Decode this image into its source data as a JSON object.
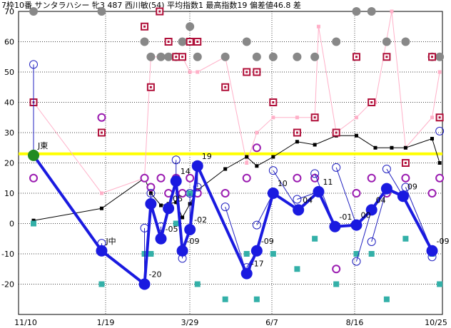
{
  "header": "7枠10番 サンタラハシー 牝3 487 西川敏(54) 平均指数1 最高指数19 偏差値46.8 差",
  "chart_data": {
    "type": "line",
    "ylim": [
      -30,
      70
    ],
    "y_ticks": [
      "70",
      "60",
      "50",
      "40",
      "30",
      "20",
      "10",
      "0",
      "-10",
      "-20"
    ],
    "x_tick_labels": [
      "11/10",
      "1/19",
      "3/29",
      "6/7",
      "8/16",
      "10/25"
    ],
    "reference_line": 23,
    "main_series": {
      "color": "#1a1ae0",
      "points": [
        {
          "x": 0,
          "y": 22.5,
          "label": "J東",
          "marker": "green"
        },
        {
          "x": 5.4,
          "y": -9,
          "label": "J中"
        },
        {
          "x": 8.8,
          "y": -20,
          "label": "-20"
        },
        {
          "x": 9.3,
          "y": 6.5,
          "label": ""
        },
        {
          "x": 10.1,
          "y": -5,
          "label": "-05"
        },
        {
          "x": 10.7,
          "y": 5,
          "label": "05"
        },
        {
          "x": 11.3,
          "y": 14,
          "label": "14"
        },
        {
          "x": 11.8,
          "y": -9,
          "label": "-09"
        },
        {
          "x": 12.4,
          "y": -2,
          "label": "-02"
        },
        {
          "x": 13.0,
          "y": 19,
          "label": "19"
        },
        {
          "x": 16.9,
          "y": -16.5,
          "label": "-17"
        },
        {
          "x": 17.7,
          "y": -9,
          "label": "-09"
        },
        {
          "x": 19.0,
          "y": 10,
          "label": "10"
        },
        {
          "x": 21.0,
          "y": 4.5,
          "label": "04"
        },
        {
          "x": 22.6,
          "y": 10.5,
          "label": "11"
        },
        {
          "x": 23.9,
          "y": -1,
          "label": "-01"
        },
        {
          "x": 25.6,
          "y": -0.5,
          "label": "00"
        },
        {
          "x": 26.8,
          "y": 4.5,
          "label": "04"
        },
        {
          "x": 28.0,
          "y": 11.5,
          "label": ""
        },
        {
          "x": 29.3,
          "y": 9,
          "label": "09"
        },
        {
          "x": 31.6,
          "y": -9,
          "label": "-09"
        }
      ]
    },
    "black_series": {
      "color": "#000000",
      "points": [
        [
          0,
          1
        ],
        [
          5.4,
          5
        ],
        [
          8.8,
          15
        ],
        [
          9.3,
          10
        ],
        [
          10.1,
          6
        ],
        [
          10.7,
          6.5
        ],
        [
          11.3,
          7
        ],
        [
          11.8,
          2
        ],
        [
          12.4,
          6.5
        ],
        [
          13.0,
          11
        ],
        [
          15.2,
          18
        ],
        [
          16.9,
          22
        ],
        [
          17.7,
          19
        ],
        [
          19.0,
          22
        ],
        [
          20.9,
          27
        ],
        [
          22.3,
          26
        ],
        [
          24.0,
          29
        ],
        [
          25.6,
          29
        ],
        [
          27.1,
          25
        ],
        [
          28.4,
          25
        ],
        [
          29.5,
          25
        ],
        [
          31.6,
          28
        ],
        [
          32.2,
          20
        ]
      ]
    },
    "pink_series": {
      "color": "#ffb0c8",
      "points": [
        [
          0,
          40
        ],
        [
          5.4,
          10
        ],
        [
          8.8,
          15
        ],
        [
          9.3,
          55
        ],
        [
          10.1,
          55
        ],
        [
          10.7,
          55
        ],
        [
          11.3,
          55
        ],
        [
          11.8,
          55
        ],
        [
          12.4,
          50
        ],
        [
          13.0,
          50
        ],
        [
          15.2,
          55
        ],
        [
          16.9,
          20
        ],
        [
          17.7,
          30
        ],
        [
          19.0,
          35
        ],
        [
          20.9,
          35
        ],
        [
          22.3,
          35
        ],
        [
          22.6,
          65
        ],
        [
          24.0,
          30
        ],
        [
          25.6,
          35
        ],
        [
          26.8,
          40
        ],
        [
          27.1,
          40
        ],
        [
          28.4,
          70
        ],
        [
          29.5,
          25
        ],
        [
          31.6,
          35
        ],
        [
          32.2,
          50
        ]
      ]
    },
    "gray_circles": [
      [
        0,
        70
      ],
      [
        5.4,
        70
      ],
      [
        8.8,
        60
      ],
      [
        9.3,
        55
      ],
      [
        10.1,
        55
      ],
      [
        10.7,
        55
      ],
      [
        11.3,
        55
      ],
      [
        11.8,
        60
      ],
      [
        12.4,
        65
      ],
      [
        13.0,
        55
      ],
      [
        15.2,
        55
      ],
      [
        16.9,
        60
      ],
      [
        17.7,
        55
      ],
      [
        19.0,
        55
      ],
      [
        20.9,
        55
      ],
      [
        22.3,
        55
      ],
      [
        24.0,
        60
      ],
      [
        25.6,
        70
      ],
      [
        26.8,
        70
      ],
      [
        28.0,
        60
      ],
      [
        29.5,
        60
      ],
      [
        31.6,
        55
      ],
      [
        32.2,
        55
      ]
    ],
    "red_squares": [
      [
        0,
        40
      ],
      [
        5.4,
        30
      ],
      [
        8.8,
        65
      ],
      [
        9.3,
        45
      ],
      [
        10.0,
        70
      ],
      [
        10.7,
        60
      ],
      [
        11.3,
        55
      ],
      [
        11.8,
        55
      ],
      [
        12.4,
        60
      ],
      [
        13.0,
        60
      ],
      [
        15.2,
        45
      ],
      [
        16.9,
        50
      ],
      [
        17.7,
        50
      ],
      [
        19.0,
        40
      ],
      [
        20.9,
        30
      ],
      [
        22.3,
        35
      ],
      [
        24.0,
        30
      ],
      [
        25.6,
        55
      ],
      [
        26.8,
        40
      ],
      [
        28.0,
        55
      ],
      [
        29.5,
        20
      ],
      [
        31.6,
        55
      ],
      [
        32.2,
        35
      ]
    ],
    "purple_circles": [
      [
        0,
        15
      ],
      [
        5.4,
        35
      ],
      [
        8.8,
        15
      ],
      [
        9.3,
        12
      ],
      [
        10.1,
        15
      ],
      [
        10.7,
        10
      ],
      [
        11.3,
        15
      ],
      [
        11.8,
        10
      ],
      [
        12.4,
        15
      ],
      [
        13.0,
        10
      ],
      [
        15.2,
        10
      ],
      [
        16.9,
        15
      ],
      [
        17.7,
        25
      ],
      [
        19.0,
        10
      ],
      [
        20.9,
        15
      ],
      [
        22.3,
        15
      ],
      [
        24.0,
        -15
      ],
      [
        25.6,
        10
      ],
      [
        26.8,
        15
      ],
      [
        28.0,
        10
      ],
      [
        29.5,
        15
      ],
      [
        31.6,
        10
      ],
      [
        32.2,
        15
      ]
    ],
    "blue_open_circles": [
      [
        0,
        52.5
      ],
      [
        5.4,
        -6.5
      ],
      [
        8.8,
        -1.5
      ],
      [
        9.3,
        10
      ],
      [
        10.1,
        -1
      ],
      [
        10.7,
        5
      ],
      [
        11.3,
        21
      ],
      [
        11.8,
        -11.5
      ],
      [
        12.4,
        10
      ],
      [
        13.0,
        12
      ],
      [
        15.2,
        5.5
      ],
      [
        16.9,
        -14.5
      ],
      [
        17.7,
        -0.5
      ],
      [
        19.0,
        17.5
      ],
      [
        20.9,
        8
      ],
      [
        22.3,
        16.5
      ],
      [
        24.0,
        18.5
      ],
      [
        25.6,
        -12.5
      ],
      [
        26.8,
        -6
      ],
      [
        28.0,
        18
      ],
      [
        29.5,
        12
      ],
      [
        31.6,
        -11
      ],
      [
        32.2,
        30.5
      ]
    ],
    "teal_squares": [
      [
        0,
        0
      ],
      [
        5.4,
        -20
      ],
      [
        8.8,
        -10
      ],
      [
        9.3,
        -10
      ],
      [
        10.1,
        -5
      ],
      [
        10.7,
        5
      ],
      [
        11.3,
        0
      ],
      [
        11.8,
        10
      ],
      [
        12.4,
        10
      ],
      [
        13.0,
        -20
      ],
      [
        15.2,
        -25
      ],
      [
        16.9,
        -10
      ],
      [
        17.7,
        -25
      ],
      [
        19.0,
        -10
      ],
      [
        20.9,
        -15
      ],
      [
        22.3,
        -5
      ],
      [
        24.0,
        -20
      ],
      [
        25.6,
        -10
      ],
      [
        26.8,
        -10
      ],
      [
        28.0,
        -25
      ],
      [
        29.5,
        -5
      ],
      [
        31.6,
        -10
      ],
      [
        32.2,
        -20
      ]
    ]
  }
}
